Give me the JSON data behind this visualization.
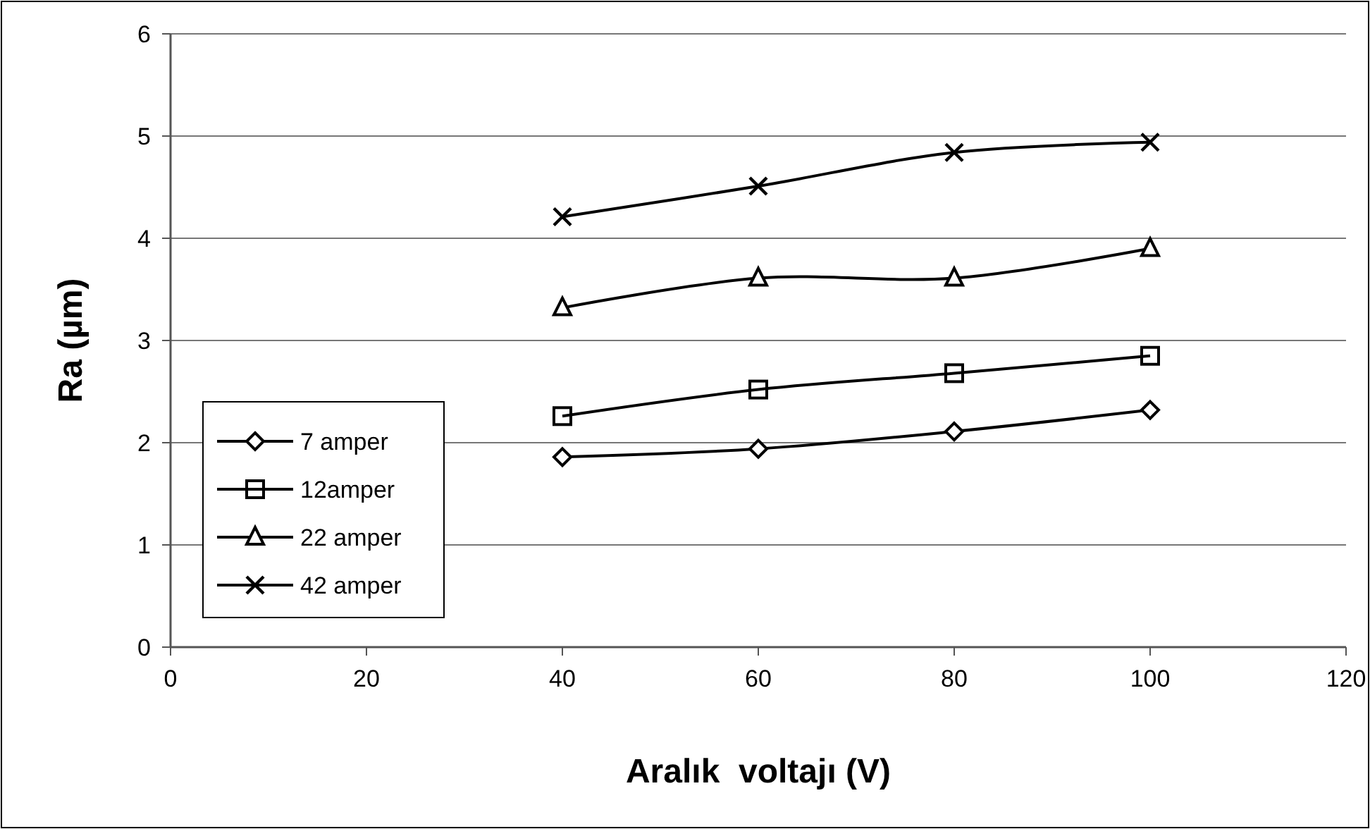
{
  "chart_data": {
    "type": "line",
    "xlabel": "Aralık  voltajı (V)",
    "ylabel": "Ra (µm)",
    "x": [
      40,
      60,
      80,
      100
    ],
    "series": [
      {
        "name": "7 amper",
        "color": "#000000",
        "marker": "diamond",
        "values": [
          1.86,
          1.94,
          2.11,
          2.32
        ]
      },
      {
        "name": "12amper",
        "color": "#000000",
        "marker": "square",
        "values": [
          2.26,
          2.52,
          2.68,
          2.85
        ]
      },
      {
        "name": "22 amper",
        "color": "#000000",
        "marker": "triangle",
        "values": [
          3.32,
          3.61,
          3.61,
          3.9
        ]
      },
      {
        "name": "42 amper",
        "color": "#000000",
        "marker": "cross",
        "values": [
          4.21,
          4.51,
          4.84,
          4.94
        ]
      }
    ],
    "xlim": [
      0,
      120
    ],
    "xticks": [
      0,
      20,
      40,
      60,
      80,
      100,
      120
    ],
    "ylim": [
      0,
      6
    ],
    "yticks": [
      0,
      1,
      2,
      3,
      4,
      5,
      6
    ],
    "grid": "y",
    "legend": "left",
    "line_style": "solid"
  }
}
